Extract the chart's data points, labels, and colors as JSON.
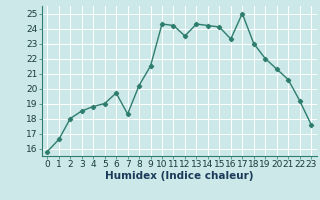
{
  "x": [
    0,
    1,
    2,
    3,
    4,
    5,
    6,
    7,
    8,
    9,
    10,
    11,
    12,
    13,
    14,
    15,
    16,
    17,
    18,
    19,
    20,
    21,
    22,
    23
  ],
  "y": [
    15.8,
    16.6,
    18.0,
    18.5,
    18.8,
    19.0,
    19.7,
    18.3,
    20.2,
    21.5,
    24.3,
    24.2,
    23.5,
    24.3,
    24.2,
    24.1,
    23.3,
    25.0,
    23.0,
    22.0,
    21.3,
    20.6,
    19.2,
    17.6
  ],
  "line_color": "#2e7d6e",
  "marker": "D",
  "marker_size": 2.2,
  "bg_color": "#cce8e8",
  "grid_color": "#b0d8d8",
  "xlabel": "Humidex (Indice chaleur)",
  "ylim": [
    15.5,
    25.5
  ],
  "xlim": [
    -0.5,
    23.5
  ],
  "yticks": [
    16,
    17,
    18,
    19,
    20,
    21,
    22,
    23,
    24,
    25
  ],
  "xticks": [
    0,
    1,
    2,
    3,
    4,
    5,
    6,
    7,
    8,
    9,
    10,
    11,
    12,
    13,
    14,
    15,
    16,
    17,
    18,
    19,
    20,
    21,
    22,
    23
  ],
  "tick_fontsize": 6.5,
  "xlabel_fontsize": 7.5,
  "line_width": 1.0
}
